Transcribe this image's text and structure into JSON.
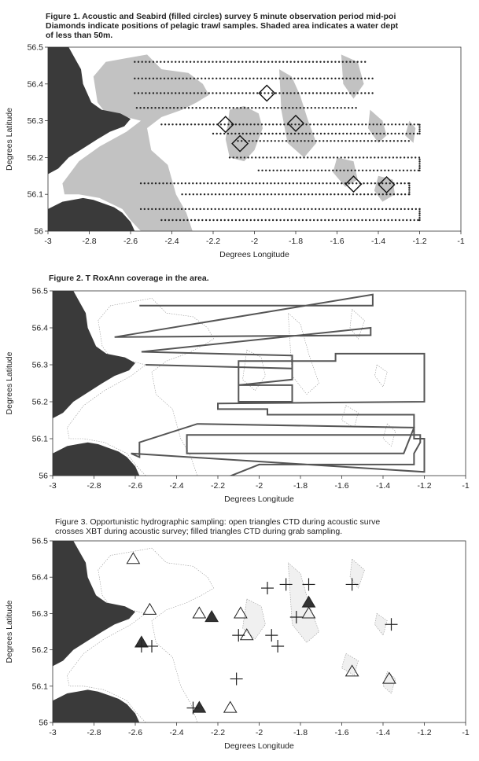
{
  "figures": [
    {
      "caption": "Figure 1. Acoustic and Seabird (filled circles) survey 5 minute observation period mid-poi Diamonds indicate positions of pelagic trawl samples. Shaded area indicates a water dept of less than 50m.",
      "caption_lines": [
        "Figure 1. Acoustic and Seabird (filled circles) survey 5 minute observation period mid-poi",
        "Diamonds indicate positions of pelagic trawl samples. Shaded area indicates a water dept",
        "of less than 50m."
      ],
      "xlabel": "Degrees Longitude",
      "ylabel": "Degrees Latitude",
      "xlim": [
        -3,
        -1
      ],
      "ylim": [
        56,
        56.5
      ],
      "xticks": [
        "-3",
        "-2.8",
        "-2.6",
        "-2.4",
        "-2.2",
        "-2",
        "-1.8",
        "-1.6",
        "-1.4",
        "-1.2",
        "-1"
      ],
      "yticks": [
        "56",
        "56.1",
        "56.2",
        "56.3",
        "56.4",
        "56.5"
      ],
      "diamonds": [
        [
          -1.94,
          56.375
        ],
        [
          -2.14,
          56.29
        ],
        [
          -1.8,
          56.293
        ],
        [
          -2.07,
          56.238
        ],
        [
          -1.52,
          56.128
        ],
        [
          -1.36,
          56.126
        ]
      ]
    },
    {
      "caption": "Figure 2. T RoxAnn coverage in the area.",
      "xlabel": "Degrees Longitude",
      "ylabel": "Degrees Latitude",
      "xlim": [
        -3,
        -1
      ],
      "ylim": [
        56,
        56.5
      ],
      "xticks": [
        "-3",
        "-2.8",
        "-2.6",
        "-2.4",
        "-2.2",
        "-2",
        "-1.8",
        "-1.6",
        "-1.4",
        "-1.2",
        "-1"
      ],
      "yticks": [
        "56",
        "56.1",
        "56.2",
        "56.3",
        "56.4",
        "56.5"
      ],
      "track": [
        [
          -2.58,
          56.46
        ],
        [
          -1.45,
          56.46
        ],
        [
          -1.45,
          56.49
        ],
        [
          -2.7,
          56.375
        ],
        [
          -1.46,
          56.38
        ],
        [
          -1.46,
          56.4
        ],
        [
          -2.57,
          56.335
        ],
        [
          -1.84,
          56.325
        ],
        [
          -1.84,
          56.29
        ],
        [
          -2.55,
          56.3
        ],
        [
          -1.84,
          56.29
        ],
        [
          -1.84,
          56.26
        ],
        [
          -2.1,
          56.245
        ],
        [
          -1.84,
          56.245
        ],
        [
          -1.84,
          56.2
        ],
        [
          -2.1,
          56.2
        ],
        [
          -2.1,
          56.31
        ],
        [
          -1.63,
          56.31
        ],
        [
          -1.63,
          56.33
        ],
        [
          -1.2,
          56.33
        ],
        [
          -1.2,
          56.2
        ],
        [
          -2.2,
          56.195
        ],
        [
          -2.2,
          56.18
        ],
        [
          -1.96,
          56.18
        ],
        [
          -1.96,
          56.165
        ],
        [
          -1.25,
          56.165
        ],
        [
          -1.25,
          56.1
        ],
        [
          -1.2,
          56.1
        ],
        [
          -1.2,
          56.01
        ],
        [
          -2.62,
          56.06
        ],
        [
          -2.58,
          56.05
        ],
        [
          -2.58,
          56.09
        ],
        [
          -2.3,
          56.14
        ],
        [
          -1.25,
          56.13
        ],
        [
          -1.3,
          56.06
        ],
        [
          -2.35,
          56.06
        ],
        [
          -2.35,
          56.11
        ],
        [
          -1.22,
          56.11
        ],
        [
          -1.22,
          56.09
        ],
        [
          -1.25,
          56.06
        ],
        [
          -1.25,
          56.03
        ],
        [
          -2.0,
          56.03
        ],
        [
          -2.18,
          55.99
        ]
      ]
    },
    {
      "caption_lines": [
        "Figure 3. Opportunistic hydrographic sampling: open triangles CTD during acoustic surve",
        "crosses XBT during acoustic survey; filled triangles CTD during grab sampling."
      ],
      "xlabel": "Degrees Longitude",
      "ylabel": "Degrees Latitude",
      "xlim": [
        -3,
        -1
      ],
      "ylim": [
        56,
        56.5
      ],
      "xticks": [
        "-3",
        "-2.8",
        "-2.6",
        "-2.4",
        "-2.2",
        "-2",
        "-1.8",
        "-1.6",
        "-1.4",
        "-1.2",
        "-1"
      ],
      "yticks": [
        "56",
        "56.1",
        "56.2",
        "56.3",
        "56.4",
        "56.5"
      ],
      "open_triangles": [
        [
          -2.61,
          56.45
        ],
        [
          -2.53,
          56.31
        ],
        [
          -2.29,
          56.3
        ],
        [
          -2.09,
          56.3
        ],
        [
          -2.06,
          56.24
        ],
        [
          -1.76,
          56.3
        ],
        [
          -1.55,
          56.14
        ],
        [
          -1.37,
          56.12
        ],
        [
          -2.14,
          56.04
        ]
      ],
      "filled_triangles": [
        [
          -2.57,
          56.22
        ],
        [
          -2.23,
          56.29
        ],
        [
          -1.76,
          56.33
        ],
        [
          -2.29,
          56.04
        ]
      ],
      "crosses": [
        [
          -1.96,
          56.37
        ],
        [
          -1.87,
          56.38
        ],
        [
          -1.76,
          56.38
        ],
        [
          -1.55,
          56.38
        ],
        [
          -1.36,
          56.27
        ],
        [
          -1.94,
          56.24
        ],
        [
          -1.91,
          56.21
        ],
        [
          -2.57,
          56.21
        ],
        [
          -2.52,
          56.21
        ],
        [
          -2.1,
          56.24
        ],
        [
          -2.11,
          56.12
        ],
        [
          -2.32,
          56.04
        ],
        [
          -1.82,
          56.29
        ]
      ]
    }
  ],
  "style": {
    "land": "#3a3a3a",
    "shallow": "#c2c2c2",
    "track": "#555555",
    "marker": "#222222"
  }
}
